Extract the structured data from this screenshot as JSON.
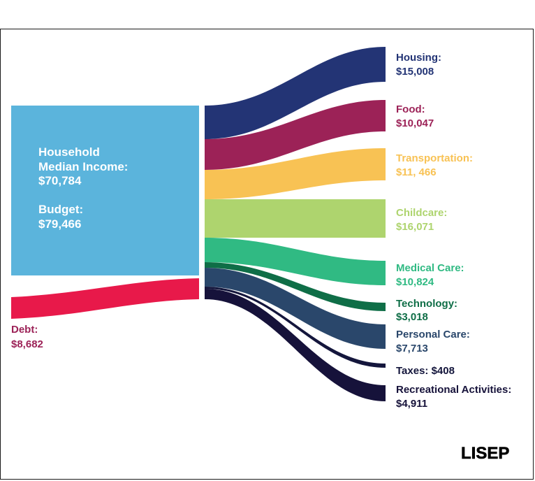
{
  "sources": {
    "income_line1": "Household",
    "income_line2": "Median Income:",
    "income_value": "$70,784",
    "budget_label": "Budget:",
    "budget_value": "$79,466",
    "debt_label": "Debt:",
    "debt_value": "$8,682",
    "income_color": "#5bb4dc",
    "debt_color": "#e8194a"
  },
  "categories": [
    {
      "name": "Housing:",
      "value": "$15,008",
      "color": "#233475"
    },
    {
      "name": "Food:",
      "value": "$10,047",
      "color": "#9c2257"
    },
    {
      "name": "Transportation:",
      "value": "$11, 466",
      "color": "#f8c254"
    },
    {
      "name": "Childcare:",
      "value": "$16,071",
      "color": "#aed46e"
    },
    {
      "name": "Medical Care:",
      "value": "$10,824",
      "color": "#30ba83"
    },
    {
      "name": "Technology:",
      "value": "$3,018",
      "color": "#0f6e47"
    },
    {
      "name": "Personal Care:",
      "value": "$7,713",
      "color": "#2a476b"
    },
    {
      "name": "Taxes: $408",
      "value": "",
      "color": "#14163c"
    },
    {
      "name": "Recreational Activities:",
      "value": "$4,911",
      "color": "#16123a"
    }
  ],
  "logo": "LISEP"
}
